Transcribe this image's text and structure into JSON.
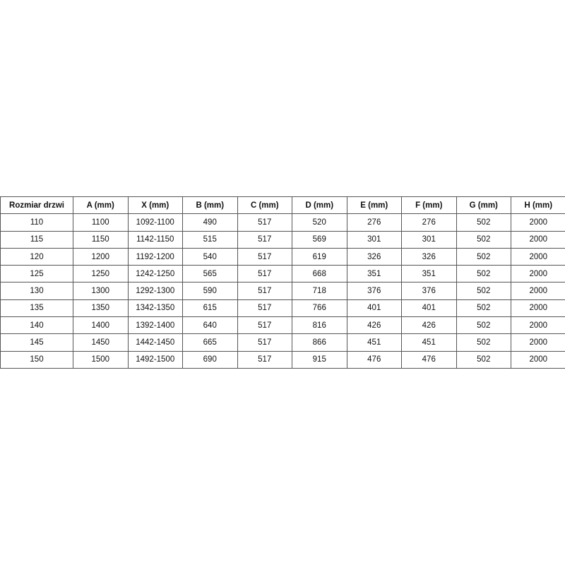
{
  "table": {
    "headers": [
      "Rozmiar drzwi",
      "A (mm)",
      "X (mm)",
      "B (mm)",
      "C (mm)",
      "D (mm)",
      "E (mm)",
      "F (mm)",
      "G (mm)",
      "H (mm)"
    ],
    "rows": [
      [
        "110",
        "1100",
        "1092-1100",
        "490",
        "517",
        "520",
        "276",
        "276",
        "502",
        "2000"
      ],
      [
        "115",
        "1150",
        "1142-1150",
        "515",
        "517",
        "569",
        "301",
        "301",
        "502",
        "2000"
      ],
      [
        "120",
        "1200",
        "1192-1200",
        "540",
        "517",
        "619",
        "326",
        "326",
        "502",
        "2000"
      ],
      [
        "125",
        "1250",
        "1242-1250",
        "565",
        "517",
        "668",
        "351",
        "351",
        "502",
        "2000"
      ],
      [
        "130",
        "1300",
        "1292-1300",
        "590",
        "517",
        "718",
        "376",
        "376",
        "502",
        "2000"
      ],
      [
        "135",
        "1350",
        "1342-1350",
        "615",
        "517",
        "766",
        "401",
        "401",
        "502",
        "2000"
      ],
      [
        "140",
        "1400",
        "1392-1400",
        "640",
        "517",
        "816",
        "426",
        "426",
        "502",
        "2000"
      ],
      [
        "145",
        "1450",
        "1442-1450",
        "665",
        "517",
        "866",
        "451",
        "451",
        "502",
        "2000"
      ],
      [
        "150",
        "1500",
        "1492-1500",
        "690",
        "517",
        "915",
        "476",
        "476",
        "502",
        "2000"
      ]
    ]
  }
}
